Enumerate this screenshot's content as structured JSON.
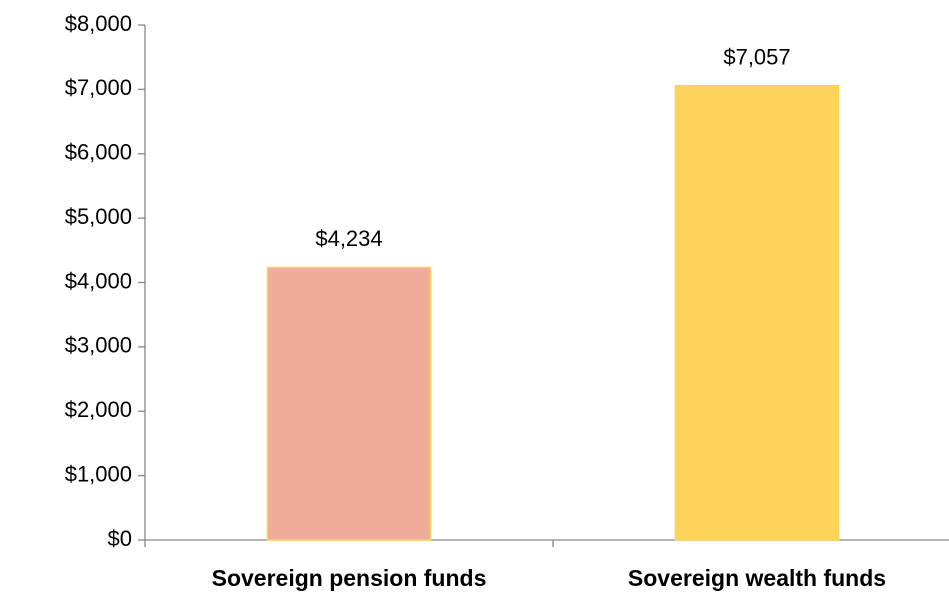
{
  "chart_data": {
    "type": "bar",
    "categories": [
      "Sovereign pension funds",
      "Sovereign wealth funds"
    ],
    "values": [
      4234,
      7057
    ],
    "value_labels": [
      "$4,234",
      "$7,057"
    ],
    "colors": [
      "#f0ab9b",
      "#fdd35a"
    ],
    "ylim": [
      0,
      8000
    ],
    "yticks": [
      {
        "value": 0,
        "label": "$0"
      },
      {
        "value": 1000,
        "label": "$1,000"
      },
      {
        "value": 2000,
        "label": "$2,000"
      },
      {
        "value": 3000,
        "label": "$3,000"
      },
      {
        "value": 4000,
        "label": "$4,000"
      },
      {
        "value": 5000,
        "label": "$5,000"
      },
      {
        "value": 6000,
        "label": "$6,000"
      },
      {
        "value": 7000,
        "label": "$7,000"
      },
      {
        "value": 8000,
        "label": "$8,000"
      }
    ],
    "grid": false
  }
}
